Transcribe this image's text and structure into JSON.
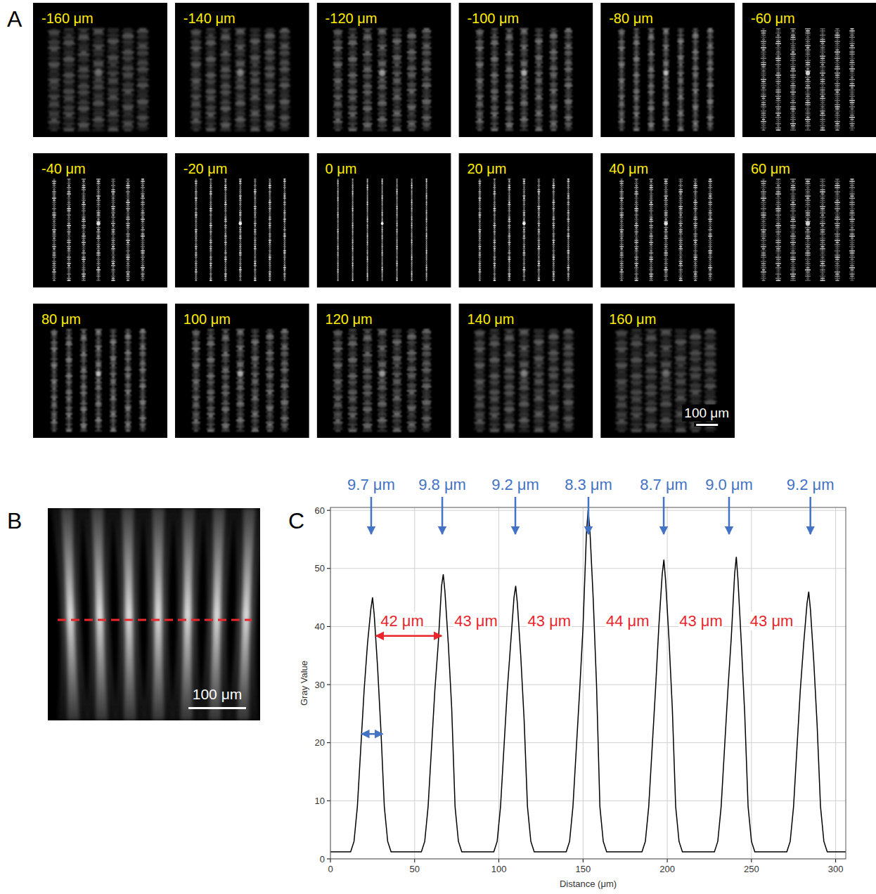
{
  "panel_labels": [
    "A",
    "B",
    "C"
  ],
  "panel_a": {
    "images": [
      {
        "value": -160,
        "label": "-160 μm"
      },
      {
        "value": -140,
        "label": "-140 μm"
      },
      {
        "value": -120,
        "label": "-120 μm"
      },
      {
        "value": -100,
        "label": "-100 μm"
      },
      {
        "value": -80,
        "label": "-80 μm"
      },
      {
        "value": -60,
        "label": "-60 μm"
      },
      {
        "value": -40,
        "label": "-40 μm"
      },
      {
        "value": -20,
        "label": "-20 μm"
      },
      {
        "value": 0,
        "label": "0 μm"
      },
      {
        "value": 20,
        "label": "20 μm"
      },
      {
        "value": 40,
        "label": "40 μm"
      },
      {
        "value": 60,
        "label": "60 μm"
      },
      {
        "value": 80,
        "label": "80 μm"
      },
      {
        "value": 100,
        "label": "100 μm"
      },
      {
        "value": 120,
        "label": "120 μm"
      },
      {
        "value": 140,
        "label": "140 μm"
      },
      {
        "value": 160,
        "label": "160 μm"
      }
    ],
    "scale_bar": "100 μm"
  },
  "panel_b": {
    "scale_bar": "100 μm",
    "profile_line_color": "#e8262b"
  },
  "chart_data": {
    "type": "line",
    "x_label": "Distance (μm)",
    "y_label": "Gray Value",
    "color": "#000000",
    "grid": true,
    "xlim": [
      0,
      306
    ],
    "ylim": [
      0,
      60.5
    ],
    "xticks": [
      0,
      50,
      100,
      150,
      200,
      250,
      300
    ],
    "yticks": [
      0,
      10,
      20,
      30,
      40,
      50,
      60
    ],
    "x": [
      0,
      12,
      14,
      16,
      18,
      20,
      22,
      24,
      25,
      26,
      28,
      30,
      32,
      34,
      36,
      54,
      56,
      58,
      60,
      62,
      64,
      66,
      67,
      68,
      70,
      72,
      74,
      76,
      78,
      97,
      99,
      101,
      103,
      105,
      107,
      109,
      110,
      111,
      113,
      115,
      117,
      119,
      121,
      140,
      142,
      144,
      146,
      148,
      150,
      152,
      153,
      154,
      156,
      158,
      160,
      162,
      164,
      185,
      187,
      189,
      191,
      193,
      195,
      197,
      198,
      199,
      201,
      203,
      205,
      207,
      209,
      228,
      230,
      232,
      234,
      236,
      238,
      240,
      241,
      242,
      244,
      246,
      248,
      250,
      252,
      271,
      273,
      275,
      277,
      279,
      281,
      283,
      284,
      285,
      287,
      289,
      291,
      293,
      295,
      306
    ],
    "values": [
      1.2,
      1.2,
      3,
      9,
      19,
      29,
      37,
      43,
      45,
      42,
      33,
      22,
      9,
      3,
      1.2,
      1.2,
      3,
      9,
      19,
      29,
      37,
      47,
      49,
      46,
      37,
      26,
      9,
      3,
      1.2,
      1.2,
      3,
      9,
      19,
      29,
      37,
      45,
      47,
      44,
      35,
      24,
      9,
      3,
      1.2,
      1.2,
      3,
      9,
      19,
      29,
      40,
      56,
      60,
      57,
      45,
      30,
      9,
      3,
      1.2,
      1.2,
      3,
      9,
      19,
      29,
      40,
      49,
      51.5,
      48,
      38,
      26,
      9,
      3,
      1.2,
      1.2,
      3,
      9,
      19,
      29,
      38,
      49,
      52,
      48,
      37,
      25,
      9,
      3,
      1.2,
      1.2,
      3,
      9,
      19,
      29,
      37,
      44,
      46,
      43,
      34,
      23,
      9,
      3,
      1.2,
      1.2
    ],
    "annotations": {
      "widths": {
        "color": "#4472c4",
        "items": [
          {
            "text": "9.7 μm",
            "x": 24.2
          },
          {
            "text": "9.8 μm",
            "x": 66.4
          },
          {
            "text": "9.2 μm",
            "x": 109.8
          },
          {
            "text": "8.3 μm",
            "x": 153.2
          },
          {
            "text": "8.7 μm",
            "x": 197.9
          },
          {
            "text": "9.0 μm",
            "x": 236.7
          },
          {
            "text": "9.2 μm",
            "x": 285
          }
        ]
      },
      "spacings": {
        "color": "#e8262b",
        "y": 41,
        "items": [
          {
            "text": "42 μm",
            "x": 42.6
          },
          {
            "text": "43 μm",
            "x": 86.4
          },
          {
            "text": "43 μm",
            "x": 130
          },
          {
            "text": "44 μm",
            "x": 176.5
          },
          {
            "text": "43 μm",
            "x": 220
          },
          {
            "text": "43 μm",
            "x": 262
          }
        ]
      },
      "arrows": [
        {
          "x1": 27,
          "x2": 66,
          "y": 38.4,
          "color": "#e8262b"
        },
        {
          "x1": 18.5,
          "x2": 31,
          "y": 21.5,
          "color": "#4472c4"
        }
      ]
    }
  }
}
